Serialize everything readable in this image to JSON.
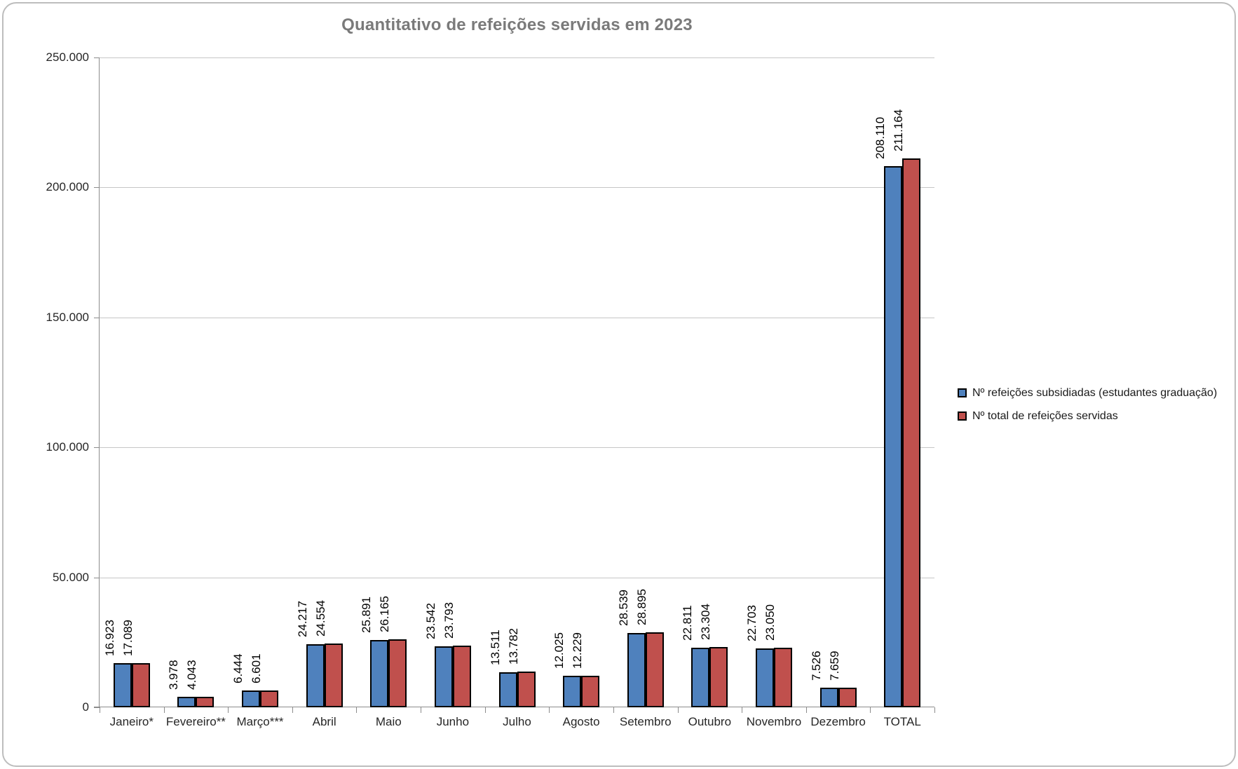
{
  "title": "Quantitativo de refeições servidas em 2023",
  "chart_data": {
    "type": "bar",
    "title": "Quantitativo de refeições servidas em 2023",
    "categories": [
      "Janeiro*",
      "Fevereiro**",
      "Março***",
      "Abril",
      "Maio",
      "Junho",
      "Julho",
      "Agosto",
      "Setembro",
      "Outubro",
      "Novembro",
      "Dezembro",
      "TOTAL"
    ],
    "series": [
      {
        "name": "Nº refeições subsidiadas (estudantes graduação)",
        "color": "#4F81BD",
        "values": [
          16923,
          3978,
          6444,
          24217,
          25891,
          23542,
          13511,
          12025,
          28539,
          22811,
          22703,
          7526,
          208110
        ],
        "labels": [
          "16.923",
          "3.978",
          "6.444",
          "24.217",
          "25.891",
          "23.542",
          "13.511",
          "12.025",
          "28.539",
          "22.811",
          "22.703",
          "7.526",
          "208.110"
        ]
      },
      {
        "name": "Nº total de refeições servidas",
        "color": "#C0504D",
        "values": [
          17089,
          4043,
          6601,
          24554,
          26165,
          23793,
          13782,
          12229,
          28895,
          23304,
          23050,
          7659,
          211164
        ],
        "labels": [
          "17.089",
          "4.043",
          "6.601",
          "24.554",
          "26.165",
          "23.793",
          "13.782",
          "12.229",
          "28.895",
          "23.304",
          "23.050",
          "7.659",
          "211.164"
        ]
      }
    ],
    "xlabel": "",
    "ylabel": "",
    "ylim": [
      0,
      250000
    ],
    "ytick_step": 50000,
    "ytick_labels": [
      "0",
      "50.000",
      "100.000",
      "150.000",
      "200.000",
      "250.000"
    ],
    "data_labels_rotation": "vertical",
    "grid": true,
    "legend_position": "right"
  }
}
